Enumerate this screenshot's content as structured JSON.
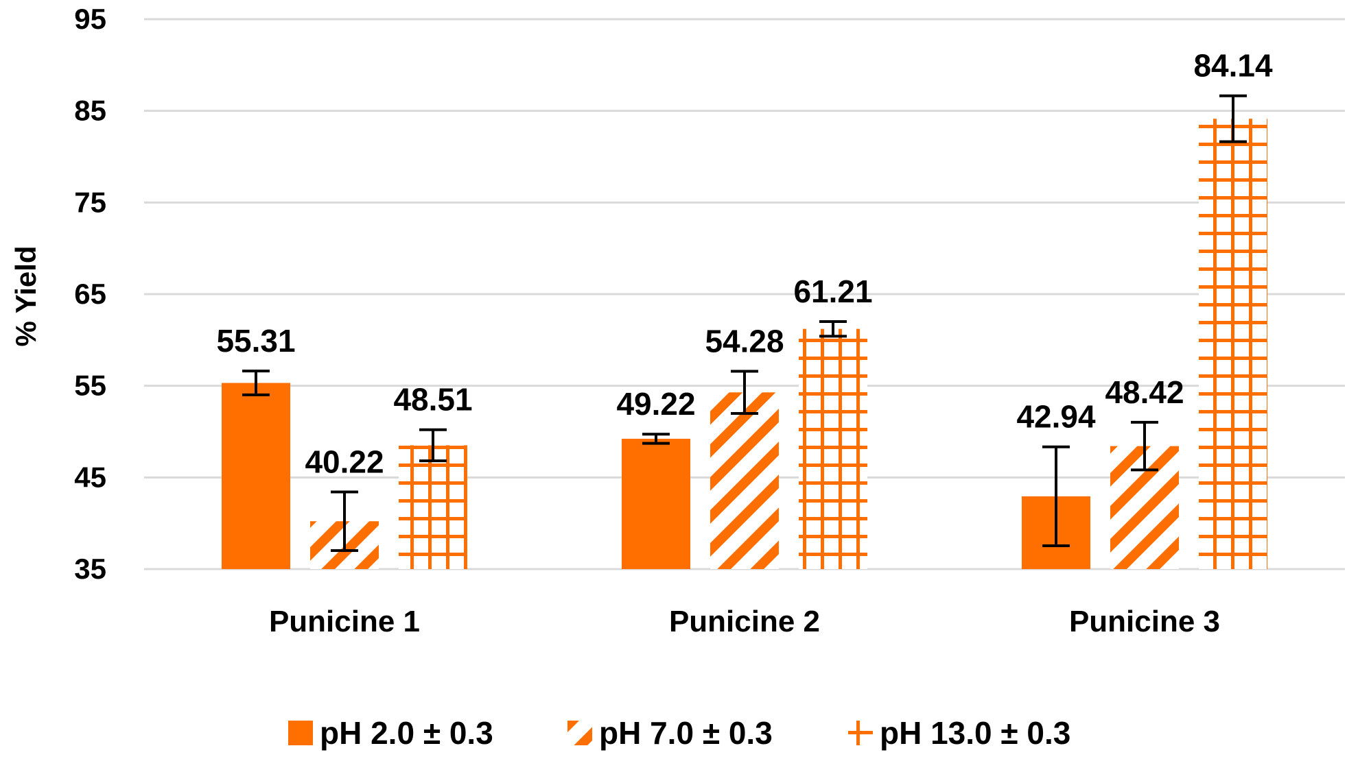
{
  "chart_data": {
    "type": "bar",
    "title": "",
    "xlabel": "",
    "ylabel": "% Yield",
    "ylim": [
      35,
      95
    ],
    "yticks": [
      35,
      45,
      55,
      65,
      75,
      85,
      95
    ],
    "grid": true,
    "legend_position": "bottom",
    "categories": [
      "Punicine 1",
      "Punicine 2",
      "Punicine 3"
    ],
    "series": [
      {
        "name": "pH 2.0 ± 0.3",
        "pattern": "solid",
        "values": [
          55.31,
          49.22,
          42.94
        ],
        "errors": [
          1.3,
          0.5,
          5.4
        ]
      },
      {
        "name": "pH 7.0 ± 0.3",
        "pattern": "diagonal",
        "values": [
          40.22,
          54.28,
          48.42
        ],
        "errors": [
          3.2,
          2.3,
          2.6
        ]
      },
      {
        "name": "pH 13.0 ± 0.3",
        "pattern": "grid",
        "values": [
          48.51,
          61.21,
          84.14
        ],
        "errors": [
          1.7,
          0.8,
          2.5
        ]
      }
    ],
    "color": "#ff6f00"
  }
}
